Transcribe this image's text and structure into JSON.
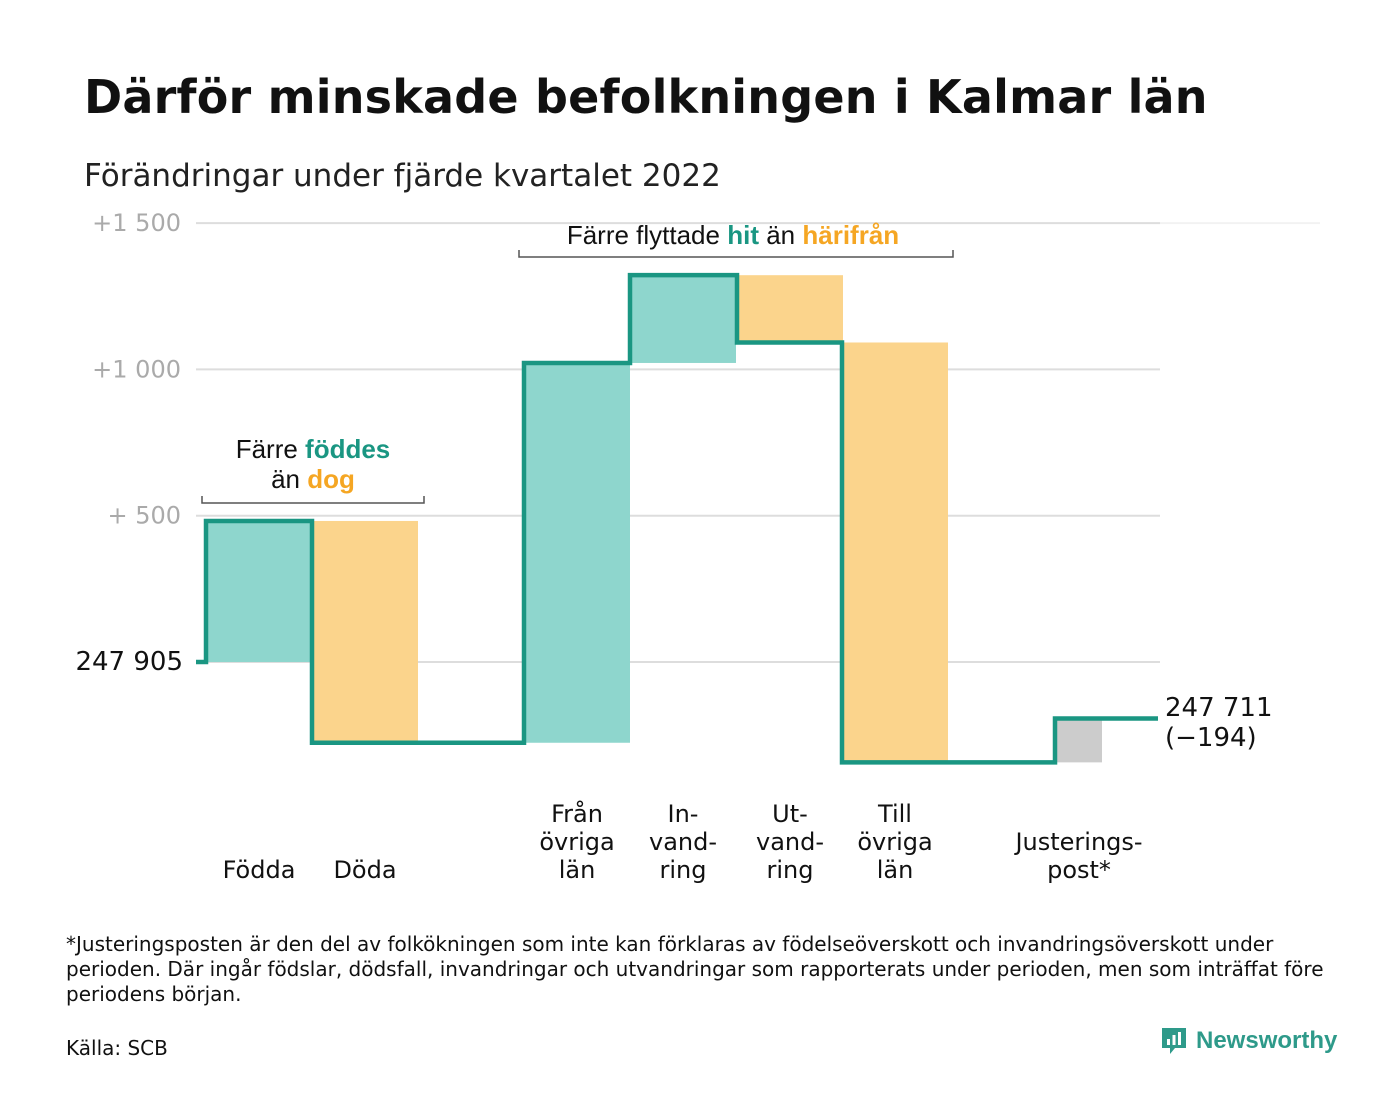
{
  "title": "Därför minskade befolkningen i Kalmar län",
  "subtitle": "Förändringar under fjärde kvartalet 2022",
  "colors": {
    "inflow": "#8ed6cd",
    "outflow": "#fbd48c",
    "adjustment": "#cccccc",
    "line": "#1a9682",
    "teal_text": "#1a9682",
    "orange_text": "#f5a623",
    "grid": "#dddddd",
    "tick_text": "#aaaaaa"
  },
  "chart_data": {
    "type": "waterfall",
    "start_label": "247 905",
    "end_label_line1": "247 711",
    "end_label_line2": "(−194)",
    "y_ticks": [
      {
        "value": 1500,
        "label": "+1 500"
      },
      {
        "value": 1000,
        "label": "+1 000"
      },
      {
        "value": 500,
        "label": "+ 500"
      },
      {
        "value": 0,
        "label": ""
      }
    ],
    "ylim": [
      -400,
      1500
    ],
    "steps": [
      {
        "label_lines": [
          "Födda"
        ],
        "change": 482,
        "kind": "inflow"
      },
      {
        "label_lines": [
          "Döda"
        ],
        "change": -758,
        "kind": "outflow"
      },
      {
        "label_lines": [
          "Från",
          "övriga",
          "län"
        ],
        "change": 1298,
        "kind": "inflow"
      },
      {
        "label_lines": [
          "In-",
          "vand-",
          "ring"
        ],
        "change": 300,
        "kind": "inflow"
      },
      {
        "label_lines": [
          "Ut-",
          "vand-",
          "ring"
        ],
        "change": -230,
        "kind": "outflow"
      },
      {
        "label_lines": [
          "Till",
          "övriga",
          "län"
        ],
        "change": -1435,
        "kind": "outflow"
      },
      {
        "label_lines": [
          "Justerings-",
          "post*"
        ],
        "change": 150,
        "kind": "adjustment"
      }
    ],
    "annotations": [
      {
        "parts": [
          {
            "text": "Färre ",
            "color": "dark"
          },
          {
            "text": "föddes",
            "color": "teal"
          }
        ],
        "parts2": [
          {
            "text": "än ",
            "color": "dark"
          },
          {
            "text": "dog",
            "color": "orange"
          }
        ]
      },
      {
        "parts": [
          {
            "text": "Färre flyttade ",
            "color": "dark"
          },
          {
            "text": "hit",
            "color": "teal"
          },
          {
            "text": " än ",
            "color": "dark"
          },
          {
            "text": "härifrån",
            "color": "orange"
          }
        ]
      }
    ]
  },
  "footnote": "*Justeringsposten är den del av folkökningen som inte kan förklaras av födelseöverskott och invandringsöverskott under perioden. Där ingår födslar, dödsfall, invandringar och utvandringar som rapporterats under perioden, men som inträffat före periodens början.",
  "source": "Källa: SCB",
  "brand": {
    "name": "Newsworthy",
    "icon": "newsworthy-logo-icon"
  }
}
